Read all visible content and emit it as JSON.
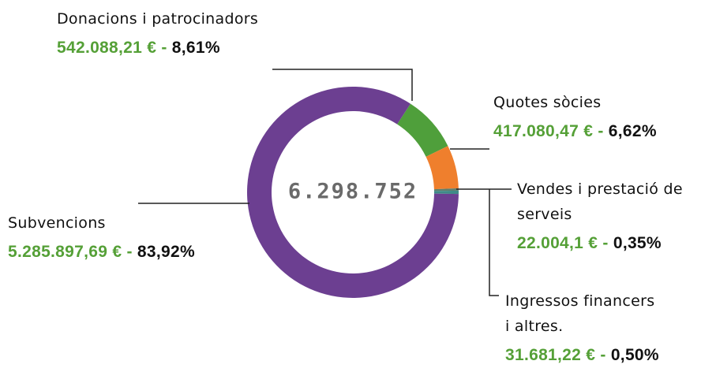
{
  "chart_data": {
    "type": "pie",
    "total": 6298752,
    "total_label": "6.298.752",
    "separator": "-",
    "categories": [
      "Donacions i patrocinadors",
      "Quotes sòcies",
      "Vendes i prestació de serveis",
      "Ingressos financers i altres.",
      "Subvencions"
    ],
    "values": [
      8.61,
      6.62,
      0.35,
      0.5,
      83.92
    ],
    "value_labels": [
      "8,61%",
      "6,62%",
      "0,35%",
      "0,50%",
      "83,92%"
    ],
    "amounts": [
      542088.21,
      417080.47,
      22004.1,
      31681.22,
      5285897.69
    ],
    "amount_labels": [
      "542.088,21 €",
      "417.080,47 €",
      "22.004,1 €",
      "31.681,22 €",
      "5.285.897,69 €"
    ],
    "colors": [
      "#4f9f3b",
      "#ef7f2d",
      "#5e7f6e",
      "#3f8a88",
      "#6c3f91"
    ]
  }
}
